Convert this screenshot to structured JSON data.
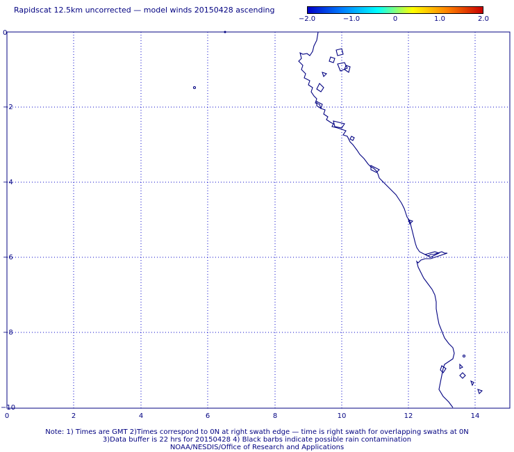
{
  "title": "Rapidscat 12.5km uncorrected — model winds 20150428 ascending",
  "colorbar": {
    "ticks": [
      "−2.0",
      "−1.0",
      "0",
      "1.0",
      "2.0"
    ],
    "colors": [
      "#0000c8",
      "#0080ff",
      "#00ffff",
      "#ffff00",
      "#ff8000",
      "#c80000"
    ]
  },
  "map": {
    "x_ticks": [
      "0",
      "2",
      "4",
      "6",
      "8",
      "10",
      "12",
      "14"
    ],
    "y_ticks": [
      "0",
      "−2",
      "−4",
      "−6",
      "−8",
      "−10"
    ],
    "line_color": "#000080",
    "grid_color": "#0000c8"
  },
  "notes": {
    "line1": "Note: 1) Times are GMT 2)Times correspond to 0N at right swath edge — time is right swath for overlapping swaths at 0N",
    "line2": "3)Data buffer is 22 hrs for 20150428 4) Black barbs indicate possible rain contamination",
    "line3": "NOAA/NESDIS/Office of Research and Applications"
  }
}
